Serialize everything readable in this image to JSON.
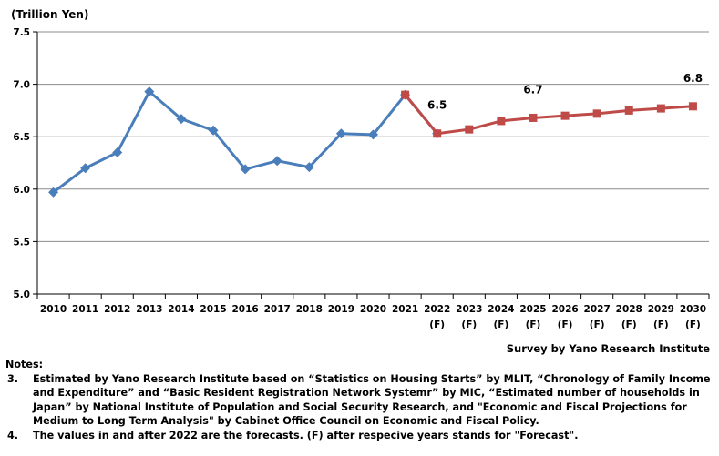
{
  "chart_data": {
    "type": "line",
    "ylabel": "(Trillion Yen)",
    "ylim": [
      5.0,
      7.5
    ],
    "yticks": [
      "5.0",
      "5.5",
      "6.0",
      "6.5",
      "7.0",
      "7.5"
    ],
    "categories": [
      [
        "2010",
        ""
      ],
      [
        "2011",
        ""
      ],
      [
        "2012",
        ""
      ],
      [
        "2013",
        ""
      ],
      [
        "2014",
        ""
      ],
      [
        "2015",
        ""
      ],
      [
        "2016",
        ""
      ],
      [
        "2017",
        ""
      ],
      [
        "2018",
        ""
      ],
      [
        "2019",
        ""
      ],
      [
        "2020",
        ""
      ],
      [
        "2021",
        ""
      ],
      [
        "2022",
        "(F)"
      ],
      [
        "2023",
        "(F)"
      ],
      [
        "2024",
        "(F)"
      ],
      [
        "2025",
        "(F)"
      ],
      [
        "2026",
        "(F)"
      ],
      [
        "2027",
        "(F)"
      ],
      [
        "2028",
        "(F)"
      ],
      [
        "2029",
        "(F)"
      ],
      [
        "2030",
        "(F)"
      ]
    ],
    "series": [
      {
        "color": "#4a7ebb",
        "marker": "diamond",
        "x": [
          "2010",
          "2011",
          "2012",
          "2013",
          "2014",
          "2015",
          "2016",
          "2017",
          "2018",
          "2019",
          "2020",
          "2021",
          "2022"
        ],
        "values": [
          5.97,
          6.2,
          6.35,
          6.93,
          6.67,
          6.56,
          6.19,
          6.27,
          6.21,
          6.53,
          6.52,
          6.9,
          6.53
        ]
      },
      {
        "color": "#be4b48",
        "marker": "square",
        "x": [
          "2021",
          "2022",
          "2023",
          "2024",
          "2025",
          "2026",
          "2027",
          "2028",
          "2029",
          "2030"
        ],
        "values": [
          6.9,
          6.53,
          6.57,
          6.65,
          6.68,
          6.7,
          6.72,
          6.75,
          6.77,
          6.79
        ]
      }
    ],
    "data_labels": [
      {
        "x": "2022",
        "text": "6.5"
      },
      {
        "x": "2025",
        "text": "6.7"
      },
      {
        "x": "2030",
        "text": "6.8"
      }
    ],
    "grid": "horizontal"
  },
  "source": "Survey by Yano Research Institute",
  "notes": {
    "heading": "Notes:",
    "items": [
      {
        "num": "3.",
        "text": "Estimated by Yano Research Institute based on “Statistics on Housing Starts” by MLIT, “Chronology of Family Income and Expenditure” and “Basic Resident Registration Network Systemr” by MIC, “Estimated number of households in Japan” by National Institute of Population and Social Security Research, and \"Economic and Fiscal Projections for Medium to Long Term Analysis\" by Cabinet Office Council on Economic and Fiscal Policy."
      },
      {
        "num": "4.",
        "text": "The values in and after 2022  are the forecasts.  (F) after respecive years stands for \"Forecast\"."
      }
    ]
  }
}
